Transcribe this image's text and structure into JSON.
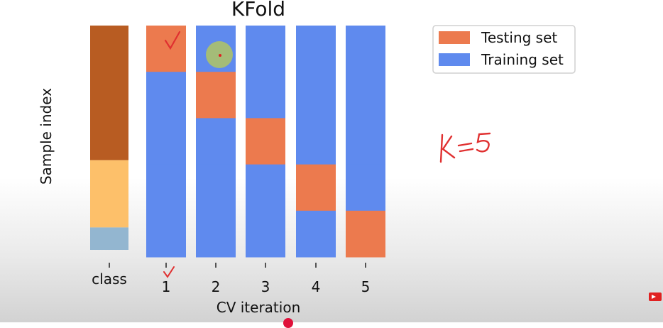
{
  "chart_data": {
    "type": "bar",
    "title": "KFold",
    "xlabel": "CV iteration",
    "ylabel": "Sample index",
    "categories": [
      "class",
      "1",
      "2",
      "3",
      "4",
      "5"
    ],
    "class_groups": [
      {
        "fraction": 0.6,
        "color": "#b85c22"
      },
      {
        "fraction": 0.3,
        "color": "#fdc06a"
      },
      {
        "fraction": 0.1,
        "color": "#93b6d0"
      }
    ],
    "folds": [
      {
        "iteration": "1",
        "test_fold": 1
      },
      {
        "iteration": "2",
        "test_fold": 2
      },
      {
        "iteration": "3",
        "test_fold": 3
      },
      {
        "iteration": "4",
        "test_fold": 4
      },
      {
        "iteration": "5",
        "test_fold": 5
      }
    ],
    "k": 5,
    "legend": [
      {
        "label": "Testing set",
        "color": "#ec7a4e"
      },
      {
        "label": "Training set",
        "color": "#5f8aee"
      }
    ],
    "legend_position": "top-right",
    "annotations": {
      "handwritten_text": "K=5",
      "checkmarks": [
        "on fold 1 testing block",
        "under iteration 1 tick"
      ],
      "pointer": "highlight circle on iteration 2 bar"
    }
  }
}
